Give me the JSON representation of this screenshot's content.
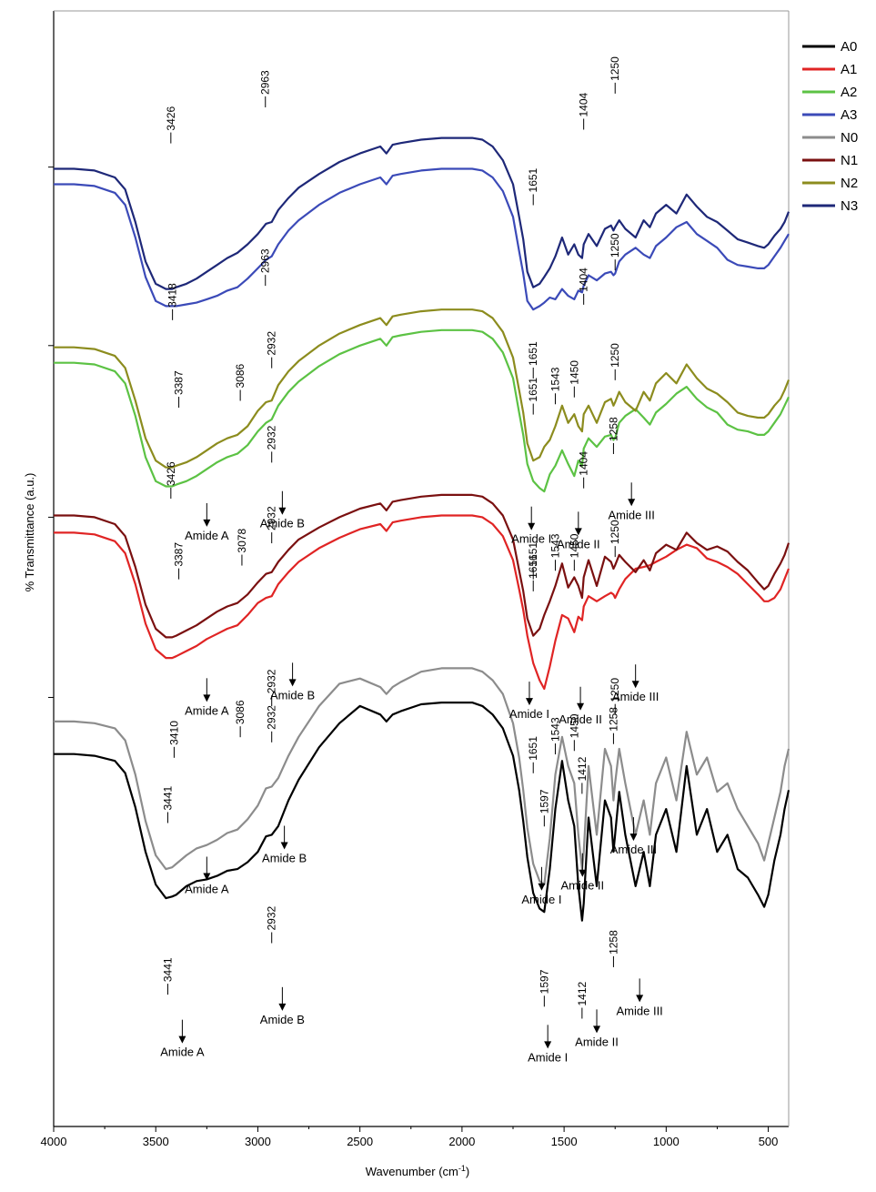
{
  "chart_data": {
    "type": "line",
    "title": "",
    "xlabel": "Wavenumber (cm-1)",
    "xlabel_main": "Wavenumber (cm",
    "xlabel_sup": "-1",
    "xlabel_end": ")",
    "ylabel": "% Transmittance (a.u.)",
    "xlim": [
      4000,
      400
    ],
    "x_reversed": true,
    "x_ticks": [
      4000,
      3500,
      3000,
      2500,
      2000,
      1500,
      1000,
      500
    ],
    "x_tick_labels": [
      "4000",
      "3500",
      "3000",
      "2500",
      "2000",
      "1500",
      "1000",
      "500"
    ],
    "grid": false,
    "legend_position": "top-right",
    "legend": [
      {
        "name": "A0",
        "color": "#000000"
      },
      {
        "name": "A1",
        "color": "#e02424"
      },
      {
        "name": "A2",
        "color": "#5cc244"
      },
      {
        "name": "A3",
        "color": "#3b4ab8"
      },
      {
        "name": "N0",
        "color": "#8c8c8c"
      },
      {
        "name": "N1",
        "color": "#7a1010"
      },
      {
        "name": "N2",
        "color": "#8c8c1e"
      },
      {
        "name": "N3",
        "color": "#1e2878"
      }
    ],
    "x": [
      4000,
      3900,
      3800,
      3700,
      3650,
      3600,
      3550,
      3500,
      3450,
      3420,
      3400,
      3350,
      3300,
      3250,
      3200,
      3150,
      3100,
      3050,
      3000,
      2960,
      2932,
      2900,
      2850,
      2800,
      2700,
      2600,
      2500,
      2400,
      2370,
      2340,
      2300,
      2200,
      2100,
      2000,
      1950,
      1900,
      1850,
      1800,
      1750,
      1720,
      1700,
      1680,
      1651,
      1620,
      1597,
      1570,
      1543,
      1510,
      1480,
      1450,
      1430,
      1412,
      1404,
      1380,
      1340,
      1300,
      1270,
      1258,
      1250,
      1230,
      1200,
      1150,
      1110,
      1080,
      1050,
      1000,
      950,
      900,
      850,
      800,
      750,
      700,
      650,
      600,
      550,
      520,
      500,
      470,
      440,
      420,
      400
    ],
    "series": [
      {
        "name": "A0",
        "color": "#000000",
        "values": [
          86.7,
          86.7,
          86.6,
          86.3,
          85.6,
          83.6,
          81.0,
          79.1,
          78.3,
          78.4,
          78.5,
          79.0,
          79.3,
          79.4,
          79.6,
          79.9,
          80.0,
          80.4,
          81.0,
          81.9,
          82.0,
          82.5,
          84.0,
          85.2,
          87.1,
          88.5,
          89.5,
          89.0,
          88.6,
          89.0,
          89.2,
          89.6,
          89.7,
          89.7,
          89.7,
          89.5,
          89.0,
          88.2,
          86.6,
          84.6,
          82.8,
          80.7,
          78.6,
          77.7,
          77.5,
          80.0,
          83.5,
          86.3,
          84.0,
          82.5,
          79.0,
          77.0,
          78.0,
          83.0,
          79.0,
          84.0,
          83.0,
          81.0,
          82.0,
          84.5,
          82.0,
          79.0,
          81.0,
          79.0,
          82.0,
          83.5,
          81.0,
          86.0,
          82.0,
          83.5,
          81.0,
          82.0,
          80.0,
          79.5,
          78.5,
          77.8,
          78.5,
          80.5,
          82.0,
          83.5,
          84.6
        ]
      },
      {
        "name": "N0",
        "color": "#8c8c8c",
        "values": [
          88.6,
          88.6,
          88.5,
          88.2,
          87.5,
          85.5,
          82.8,
          80.8,
          80.0,
          80.1,
          80.3,
          80.8,
          81.2,
          81.4,
          81.7,
          82.1,
          82.3,
          82.9,
          83.7,
          84.7,
          84.8,
          85.3,
          86.6,
          87.7,
          89.5,
          90.8,
          91.1,
          90.6,
          90.2,
          90.6,
          90.9,
          91.5,
          91.7,
          91.7,
          91.7,
          91.5,
          91.0,
          90.2,
          88.5,
          86.5,
          84.6,
          82.4,
          80.3,
          79.3,
          79.1,
          81.8,
          85.5,
          87.7,
          86.0,
          85.0,
          82.0,
          80.0,
          81.0,
          86.0,
          82.0,
          87.0,
          86.0,
          84.0,
          85.0,
          87.0,
          85.0,
          82.0,
          84.0,
          82.0,
          85.0,
          86.5,
          84.0,
          88.0,
          85.5,
          86.5,
          84.5,
          85.0,
          83.5,
          82.5,
          81.5,
          80.5,
          81.5,
          83.0,
          84.5,
          86.0,
          87.0
        ]
      },
      {
        "name": "A1",
        "color": "#e02424",
        "values": [
          99.6,
          99.6,
          99.5,
          99.1,
          98.4,
          96.6,
          94.3,
          92.8,
          92.3,
          92.3,
          92.4,
          92.7,
          93.0,
          93.4,
          93.7,
          94.0,
          94.2,
          94.8,
          95.5,
          95.8,
          95.9,
          96.6,
          97.3,
          97.9,
          98.7,
          99.3,
          99.8,
          100.1,
          99.7,
          100.2,
          100.3,
          100.5,
          100.6,
          100.6,
          100.6,
          100.5,
          100.1,
          99.4,
          98.0,
          96.3,
          95.1,
          93.6,
          92.0,
          91.0,
          90.5,
          91.8,
          93.3,
          94.8,
          94.6,
          93.8,
          94.7,
          94.5,
          95.3,
          95.9,
          95.6,
          95.9,
          96.1,
          96.0,
          95.8,
          96.3,
          96.9,
          97.5,
          97.6,
          97.7,
          97.9,
          98.2,
          98.6,
          98.9,
          98.7,
          98.1,
          97.9,
          97.6,
          97.2,
          96.6,
          96.0,
          95.6,
          95.6,
          95.8,
          96.3,
          96.9,
          97.5
        ]
      },
      {
        "name": "N1",
        "color": "#7a1010",
        "values": [
          100.6,
          100.6,
          100.5,
          100.1,
          99.4,
          97.6,
          95.4,
          94.0,
          93.5,
          93.5,
          93.6,
          93.9,
          94.2,
          94.6,
          95.0,
          95.3,
          95.5,
          96.0,
          96.7,
          97.2,
          97.3,
          97.9,
          98.6,
          99.2,
          99.9,
          100.5,
          101.0,
          101.3,
          100.9,
          101.4,
          101.5,
          101.7,
          101.8,
          101.8,
          101.8,
          101.7,
          101.3,
          100.6,
          99.2,
          97.4,
          96.2,
          94.6,
          93.6,
          94.0,
          94.8,
          95.6,
          96.5,
          97.8,
          96.4,
          97.0,
          96.5,
          95.8,
          97.0,
          98.0,
          96.5,
          98.2,
          97.9,
          97.5,
          97.7,
          98.3,
          97.9,
          97.3,
          98.0,
          97.4,
          98.4,
          98.9,
          98.6,
          99.6,
          99.0,
          98.6,
          98.8,
          98.5,
          97.9,
          97.4,
          96.7,
          96.3,
          96.5,
          97.2,
          97.8,
          98.3,
          99.0
        ]
      },
      {
        "name": "A2",
        "color": "#5cc244",
        "values": [
          109.5,
          109.5,
          109.4,
          109.0,
          108.3,
          106.4,
          104.0,
          102.6,
          102.3,
          102.3,
          102.4,
          102.6,
          102.9,
          103.3,
          103.7,
          104.0,
          104.2,
          104.7,
          105.5,
          106.0,
          106.2,
          107.0,
          107.8,
          108.4,
          109.3,
          110.0,
          110.5,
          110.9,
          110.5,
          111.0,
          111.1,
          111.3,
          111.4,
          111.4,
          111.4,
          111.3,
          110.9,
          110.1,
          108.6,
          106.6,
          105.3,
          103.6,
          102.6,
          102.2,
          102.0,
          103.0,
          103.5,
          104.4,
          103.6,
          102.9,
          103.8,
          103.5,
          104.5,
          105.1,
          104.6,
          105.2,
          105.3,
          105.0,
          105.1,
          106.0,
          106.4,
          106.8,
          106.3,
          105.9,
          106.6,
          107.1,
          107.7,
          108.1,
          107.4,
          106.9,
          106.6,
          105.9,
          105.6,
          105.5,
          105.3,
          105.3,
          105.5,
          106.0,
          106.5,
          107.0,
          107.5
        ]
      },
      {
        "name": "N2",
        "color": "#8c8c1e",
        "values": [
          110.4,
          110.4,
          110.3,
          109.9,
          109.2,
          107.3,
          105.1,
          103.8,
          103.4,
          103.4,
          103.5,
          103.7,
          104.0,
          104.4,
          104.8,
          105.1,
          105.3,
          105.8,
          106.7,
          107.2,
          107.3,
          108.2,
          109.0,
          109.6,
          110.5,
          111.2,
          111.7,
          112.1,
          111.7,
          112.2,
          112.3,
          112.5,
          112.6,
          112.6,
          112.6,
          112.5,
          112.1,
          111.3,
          109.8,
          107.9,
          106.6,
          104.8,
          103.8,
          104.0,
          104.6,
          105.0,
          105.8,
          107.0,
          106.0,
          106.5,
          105.8,
          105.5,
          106.5,
          107.0,
          106.0,
          107.2,
          107.4,
          107.0,
          107.2,
          107.8,
          107.2,
          106.7,
          107.8,
          107.3,
          108.3,
          108.9,
          108.3,
          109.4,
          108.6,
          108.0,
          107.7,
          107.2,
          106.6,
          106.4,
          106.3,
          106.3,
          106.5,
          107.0,
          107.4,
          107.9,
          108.5
        ]
      },
      {
        "name": "A3",
        "color": "#3b4ab8",
        "values": [
          119.9,
          119.9,
          119.8,
          119.4,
          118.7,
          116.8,
          114.5,
          113.1,
          112.8,
          112.8,
          112.8,
          112.9,
          113.0,
          113.2,
          113.4,
          113.7,
          113.9,
          114.4,
          115.0,
          115.5,
          115.7,
          116.4,
          117.2,
          117.8,
          118.7,
          119.4,
          119.9,
          120.3,
          119.9,
          120.4,
          120.5,
          120.7,
          120.8,
          120.8,
          120.8,
          120.7,
          120.3,
          119.5,
          118.0,
          116.0,
          114.7,
          113.1,
          112.6,
          112.8,
          113.0,
          113.3,
          113.2,
          113.8,
          113.4,
          113.2,
          113.7,
          113.6,
          114.0,
          114.6,
          114.3,
          114.7,
          114.8,
          114.6,
          114.7,
          115.4,
          115.8,
          116.2,
          115.8,
          115.6,
          116.3,
          116.8,
          117.4,
          117.7,
          117.0,
          116.6,
          116.2,
          115.5,
          115.2,
          115.1,
          115.0,
          115.0,
          115.2,
          115.7,
          116.2,
          116.6,
          117.0
        ]
      },
      {
        "name": "N3",
        "color": "#1e2878",
        "values": [
          120.8,
          120.8,
          120.7,
          120.3,
          119.6,
          117.7,
          115.4,
          114.1,
          113.8,
          113.8,
          113.9,
          114.1,
          114.4,
          114.8,
          115.2,
          115.6,
          115.9,
          116.4,
          117.0,
          117.6,
          117.7,
          118.4,
          119.1,
          119.7,
          120.5,
          121.2,
          121.7,
          122.1,
          121.7,
          122.2,
          122.3,
          122.5,
          122.6,
          122.6,
          122.6,
          122.5,
          122.1,
          121.3,
          119.9,
          118.0,
          116.7,
          114.8,
          113.9,
          114.1,
          114.5,
          115.0,
          115.7,
          116.8,
          115.8,
          116.4,
          115.8,
          115.6,
          116.4,
          117.0,
          116.3,
          117.3,
          117.5,
          117.2,
          117.4,
          117.8,
          117.3,
          116.8,
          117.8,
          117.4,
          118.2,
          118.7,
          118.2,
          119.3,
          118.6,
          118.0,
          117.7,
          117.2,
          116.7,
          116.5,
          116.3,
          116.2,
          116.4,
          116.9,
          117.3,
          117.7,
          118.3
        ]
      }
    ],
    "peak_labels": [
      {
        "text": "3426",
        "x": 3426,
        "y": 122.6
      },
      {
        "text": "2963",
        "x": 2963,
        "y": 124.7
      },
      {
        "text": "1651",
        "x": 1651,
        "y": 119.0
      },
      {
        "text": "1404",
        "x": 1404,
        "y": 123.4
      },
      {
        "text": "1250",
        "x": 1250,
        "y": 125.5
      },
      {
        "text": "3387",
        "x": 3387,
        "y": 107.2
      },
      {
        "text": "3086",
        "x": 3086,
        "y": 107.6
      },
      {
        "text": "2932",
        "x": 2932,
        "y": 109.5
      },
      {
        "text": "1651",
        "x": 1651,
        "y": 106.8
      },
      {
        "text": "1543",
        "x": 1543,
        "y": 107.4
      },
      {
        "text": "1450",
        "x": 1450,
        "y": 107.8
      },
      {
        "text": "1250",
        "x": 1250,
        "y": 108.8
      },
      {
        "text": "3418",
        "x": 3418,
        "y": 112.3
      },
      {
        "text": "2963",
        "x": 2963,
        "y": 114.3
      },
      {
        "text": "1651",
        "x": 1651,
        "y": 108.9
      },
      {
        "text": "1404",
        "x": 1404,
        "y": 113.2
      },
      {
        "text": "1250",
        "x": 1250,
        "y": 115.2
      },
      {
        "text": "3387",
        "x": 3387,
        "y": 97.2
      },
      {
        "text": "3078",
        "x": 3078,
        "y": 98.0
      },
      {
        "text": "2932",
        "x": 2932,
        "y": 99.3
      },
      {
        "text": "1651",
        "x": 1651,
        "y": 96.5
      },
      {
        "text": "1543",
        "x": 1543,
        "y": 97.7
      },
      {
        "text": "1450",
        "x": 1450,
        "y": 97.7
      },
      {
        "text": "1250",
        "x": 1250,
        "y": 98.5
      },
      {
        "text": "3426",
        "x": 3426,
        "y": 101.9
      },
      {
        "text": "2932",
        "x": 2932,
        "y": 104.0
      },
      {
        "text": "1651",
        "x": 1651,
        "y": 97.2
      },
      {
        "text": "1404",
        "x": 1404,
        "y": 102.5
      },
      {
        "text": "1258",
        "x": 1258,
        "y": 104.5
      },
      {
        "text": "3410",
        "x": 3410,
        "y": 86.8
      },
      {
        "text": "3086",
        "x": 3086,
        "y": 88.0
      },
      {
        "text": "2932",
        "x": 2932,
        "y": 89.8
      },
      {
        "text": "1651",
        "x": 1651,
        "y": 85.9
      },
      {
        "text": "1543",
        "x": 1543,
        "y": 87.0
      },
      {
        "text": "1450",
        "x": 1450,
        "y": 87.2
      },
      {
        "text": "1250",
        "x": 1250,
        "y": 89.3
      },
      {
        "text": "3441",
        "x": 3441,
        "y": 83.0
      },
      {
        "text": "2932",
        "x": 2932,
        "y": 87.7
      },
      {
        "text": "1597",
        "x": 1597,
        "y": 82.8
      },
      {
        "text": "1412",
        "x": 1412,
        "y": 84.7
      },
      {
        "text": "1258",
        "x": 1258,
        "y": 87.6
      },
      {
        "text": "3441",
        "x": 3441,
        "y": 73.0
      },
      {
        "text": "2932",
        "x": 2932,
        "y": 76.0
      },
      {
        "text": "1597",
        "x": 1597,
        "y": 72.3
      },
      {
        "text": "1412",
        "x": 1412,
        "y": 71.6
      },
      {
        "text": "1258",
        "x": 1258,
        "y": 74.6
      }
    ],
    "amide_labels": [
      {
        "text": "Amide A",
        "x": 3250,
        "y": 99.2
      },
      {
        "text": "Amide B",
        "x": 2880,
        "y": 99.9
      },
      {
        "text": "Amide I",
        "x": 1660,
        "y": 99.0
      },
      {
        "text": "Amide II",
        "x": 1430,
        "y": 98.7
      },
      {
        "text": "Amide III",
        "x": 1170,
        "y": 100.4
      },
      {
        "text": "Amide A",
        "x": 3250,
        "y": 89.0
      },
      {
        "text": "Amide B",
        "x": 2830,
        "y": 89.9
      },
      {
        "text": "Amide I",
        "x": 1670,
        "y": 88.8
      },
      {
        "text": "Amide II",
        "x": 1420,
        "y": 88.5
      },
      {
        "text": "Amide III",
        "x": 1150,
        "y": 89.8
      },
      {
        "text": "Amide  A",
        "x": 3250,
        "y": 78.6
      },
      {
        "text": "Amide B",
        "x": 2870,
        "y": 80.4
      },
      {
        "text": "Amide II",
        "x": 1410,
        "y": 78.8
      },
      {
        "text": "Amide I",
        "x": 1610,
        "y": 78.0
      },
      {
        "text": "Amide III",
        "x": 1160,
        "y": 80.9
      },
      {
        "text": "Amide A",
        "x": 3370,
        "y": 69.1
      },
      {
        "text": "Amide B",
        "x": 2880,
        "y": 71.0
      },
      {
        "text": "Amide I",
        "x": 1580,
        "y": 68.8
      },
      {
        "text": "Amide II",
        "x": 1340,
        "y": 69.7
      },
      {
        "text": "Amide III",
        "x": 1130,
        "y": 71.5
      }
    ]
  }
}
